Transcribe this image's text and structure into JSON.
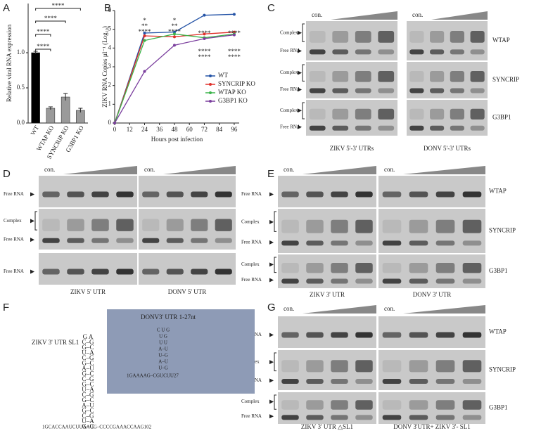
{
  "chart_data": [
    {
      "type": "bar",
      "letter": "A",
      "ylabel": "Relative viral RNA expression",
      "categories": [
        "WT",
        "WTAP KO",
        "SYNCRIP KO",
        "G3BP1 KO"
      ],
      "values": [
        1.0,
        0.21,
        0.37,
        0.18
      ],
      "errors": [
        0.02,
        0.02,
        0.05,
        0.03
      ],
      "colors": [
        "#000000",
        "#9a9a9a",
        "#9a9a9a",
        "#9a9a9a"
      ],
      "ylim": [
        0,
        1.7
      ],
      "yticks": [
        {
          "value": 0,
          "label": "0.0"
        },
        {
          "value": 0.5,
          "label": "0.5"
        },
        {
          "value": 1,
          "label": "1.0"
        }
      ],
      "annotations": [
        "****",
        "****",
        "****",
        "****"
      ]
    },
    {
      "type": "line",
      "letter": "B",
      "xlabel": "Hours post infection",
      "ylabel": "ZIKV RNA Copies µl⁻¹ (Log₁₀)",
      "x": [
        0,
        24,
        48,
        72,
        96
      ],
      "xlim": [
        0,
        100
      ],
      "xticks": [
        0,
        12,
        24,
        36,
        48,
        60,
        72,
        84,
        96
      ],
      "ylim": [
        0,
        6
      ],
      "yticks": [
        0,
        1,
        2,
        3,
        4,
        5,
        6
      ],
      "series": [
        {
          "name": "WT",
          "color": "#2453a6",
          "values": [
            0,
            4.8,
            4.85,
            5.75,
            5.8
          ]
        },
        {
          "name": "SYNCRIP KO",
          "color": "#e0302a",
          "values": [
            0,
            4.65,
            4.6,
            4.75,
            4.85
          ]
        },
        {
          "name": "WTAP KO",
          "color": "#3cb44b",
          "values": [
            0,
            4.4,
            4.75,
            4.55,
            4.75
          ]
        },
        {
          "name": "G3BP1 KO",
          "color": "#7b3f9e",
          "values": [
            0,
            2.75,
            4.15,
            4.5,
            4.7
          ]
        }
      ],
      "annotations": [
        {
          "text": "*",
          "color": "#e0302a"
        },
        {
          "text": "**",
          "color": "#3cb44b"
        },
        {
          "text": "****",
          "color": "#7b3f9e"
        },
        {
          "text": "*",
          "color": "#e0302a"
        },
        {
          "text": "**",
          "color": "#7b3f9e"
        },
        {
          "text": "****",
          "color": "#7b3f9e"
        },
        {
          "text": "****",
          "color": "#e0302a"
        },
        {
          "text": "****",
          "color": "#7b3f9e"
        },
        {
          "text": "****",
          "color": "#3cb44b"
        },
        {
          "text": "****",
          "color": "#e0302a"
        },
        {
          "text": "****",
          "color": "#3cb44b"
        },
        {
          "text": "****",
          "color": "#7b3f9e"
        }
      ]
    }
  ],
  "gels": [
    {
      "letter": "C",
      "con": [
        "con.",
        "con."
      ],
      "captions": [
        "ZIKV 5'-3' UTRs",
        "DONV 5'-3' UTRs"
      ],
      "rows": [
        {
          "labels": [
            "Complex",
            "Free RNA"
          ],
          "protein": "WTAP"
        },
        {
          "labels": [
            "Complex",
            "Free RNA"
          ],
          "protein": "SYNCRIP"
        },
        {
          "labels": [
            "Complex",
            "Free RNA"
          ],
          "protein": "G3BP1"
        }
      ]
    },
    {
      "letter": "D",
      "con": [
        "con.",
        "con."
      ],
      "captions": [
        "ZIKV 5' UTR",
        "DONV 5' UTR"
      ],
      "rows": [
        {
          "labels": [
            "Free RNA"
          ]
        },
        {
          "labels": [
            "Complex",
            "Free RNA"
          ]
        },
        {
          "labels": [
            "Free RNA"
          ]
        }
      ]
    },
    {
      "letter": "E",
      "con": [
        "con.",
        "con."
      ],
      "captions": [
        "ZIKV 3' UTR",
        "DONV 3' UTR"
      ],
      "rows": [
        {
          "labels": [
            "Free RNA"
          ],
          "protein": "WTAP"
        },
        {
          "labels": [
            "Complex",
            "Free RNA"
          ],
          "protein": "SYNCRIP"
        },
        {
          "labels": [
            "Complex",
            "Free RNA"
          ],
          "protein": "G3BP1"
        }
      ]
    },
    {
      "letter": "G",
      "con": [
        "con.",
        "con."
      ],
      "captions": [
        "ZIKV 3' UTR △SL1",
        "DONV 3'UTR+ ZIKV 3'- SL1"
      ],
      "rows": [
        {
          "labels": [
            "Free RNA"
          ],
          "protein": "WTAP"
        },
        {
          "labels": [
            "Complex",
            "Free RNA"
          ],
          "protein": "SYNCRIP"
        },
        {
          "labels": [
            "Complex",
            "Free RNA"
          ],
          "protein": "G3BP1"
        }
      ]
    }
  ],
  "panel_f": {
    "letter": "F",
    "title": "ZIKV 3' UTR SL1",
    "box_title": "DONV3' UTR 1-27nt",
    "box_stem": [
      "C U G",
      "U    G",
      "U    U",
      "A–U",
      "U–G",
      "A–U",
      "U–G"
    ],
    "box_seq": "1GAAAAG–CGUCUU27",
    "zikv_stem": [
      "G A",
      "C–G",
      "G–C",
      "U–A",
      "C–G",
      "G–C",
      "A–U",
      "G–C",
      "C–G",
      "G–C",
      "U–A",
      "C–G",
      "G–C",
      "A–U",
      "G–C",
      "C–G",
      "U–A",
      "G–C"
    ],
    "zikv_seq": "1GCACCAAUCUUAAUG–CCCCGAAACCAAG102"
  }
}
